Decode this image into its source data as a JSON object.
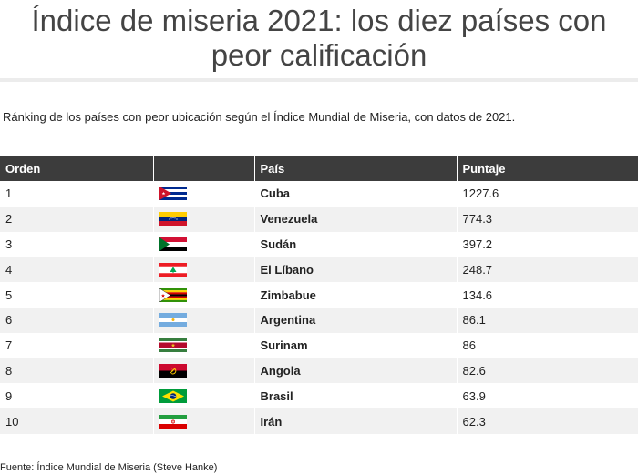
{
  "header": {
    "title": "Índice de miseria 2021: los diez países con peor calificación"
  },
  "subtitle": "Ránking de los países con peor ubicación según el Índice Mundial de Miseria, con datos de 2021.",
  "table": {
    "columns": [
      "Orden",
      "",
      "País",
      "Puntaje"
    ],
    "rows": [
      {
        "order": "1",
        "flag": "cuba-flag-icon",
        "country": "Cuba",
        "score": "1227.6"
      },
      {
        "order": "2",
        "flag": "venezuela-flag-icon",
        "country": "Venezuela",
        "score": "774.3"
      },
      {
        "order": "3",
        "flag": "sudan-flag-icon",
        "country": "Sudán",
        "score": "397.2"
      },
      {
        "order": "4",
        "flag": "lebanon-flag-icon",
        "country": "El Líbano",
        "score": "248.7"
      },
      {
        "order": "5",
        "flag": "zimbabwe-flag-icon",
        "country": "Zimbabue",
        "score": "134.6"
      },
      {
        "order": "6",
        "flag": "argentina-flag-icon",
        "country": "Argentina",
        "score": "86.1"
      },
      {
        "order": "7",
        "flag": "suriname-flag-icon",
        "country": "Surinam",
        "score": "86"
      },
      {
        "order": "8",
        "flag": "angola-flag-icon",
        "country": "Angola",
        "score": "82.6"
      },
      {
        "order": "9",
        "flag": "brazil-flag-icon",
        "country": "Brasil",
        "score": "63.9"
      },
      {
        "order": "10",
        "flag": "iran-flag-icon",
        "country": "Irán",
        "score": "62.3"
      }
    ]
  },
  "source": "Fuente: Índice Mundial de Miseria (Steve Hanke)"
}
